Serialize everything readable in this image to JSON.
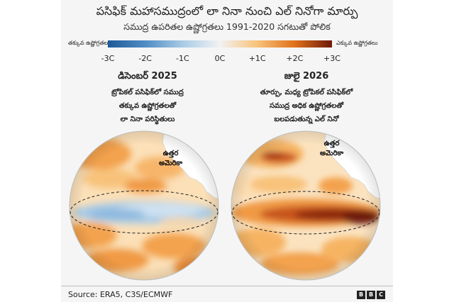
{
  "title": "పసిఫిక్ మహాసముద్రంలో లా నినా నుంచి ఎల్ నినోగా మార్పు",
  "subtitle": "సముద్ర ఉపరితల ఉష్ణోగ్రతలు 1991-2020 సగటుతో పోలిక",
  "legend": {
    "left_label": "తక్కువ ఉష్ణోగ్రతలు",
    "right_label": "ఎక్కువ ఉష్ణోగ్రతలు",
    "ticks": [
      "-3C",
      "-2C",
      "-1C",
      "0C",
      "+1C",
      "+2C",
      "+3C"
    ],
    "colors": [
      "#1f5a98",
      "#4f8cc4",
      "#a8cbe6",
      "#f2f2f2",
      "#f8c27a",
      "#e0711b",
      "#6e1a0a"
    ]
  },
  "maps": [
    {
      "period": "డిసెంబర్ 2025",
      "desc": [
        "ట్రోపికల్ పసిఫిక్‌లో సముద్ర",
        "తక్కువ ఉష్ణోగ్రతలతో",
        "లా నినా పరిస్థితులు"
      ],
      "region_label": [
        "ఉత్తర",
        "అమెరికా"
      ],
      "condition": "La Nina",
      "equatorial_anomaly": "cool"
    },
    {
      "period": "జులై 2026",
      "desc": [
        "తూర్పు, మధ్య ట్రోపికల్ పసిఫిక్‌లో",
        "సముద్ర అధిక ఉష్ణోగ్రతలతో",
        "బలపడుతున్న ఎల్ నినో"
      ],
      "region_label": [
        "ఉత్తర",
        "అమెరికా"
      ],
      "condition": "El Nino",
      "equatorial_anomaly": "warm"
    }
  ],
  "source": "Source: ERA5, C3S/ECMWF",
  "logo": [
    "B",
    "B",
    "C"
  ]
}
